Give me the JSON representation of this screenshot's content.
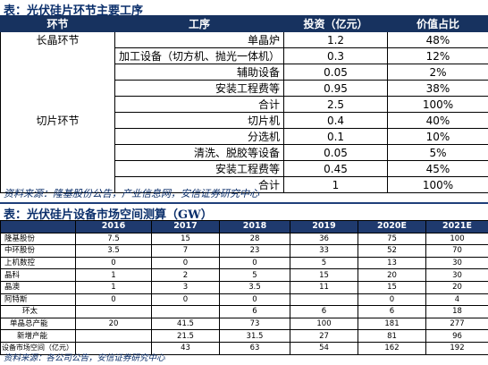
{
  "table1": {
    "title": "表：光伏硅片环节主要工序",
    "headers": [
      "环节",
      "工序",
      "投资（亿元）",
      "价值占比"
    ],
    "segments": [
      "长晶环节",
      "切片环节"
    ],
    "rows": [
      {
        "process": "单晶炉",
        "investment": "1.2",
        "share": "48%"
      },
      {
        "process": "加工设备（切方机、抛光一体机）",
        "investment": "0.3",
        "share": "12%"
      },
      {
        "process": "辅助设备",
        "investment": "0.05",
        "share": "2%"
      },
      {
        "process": "安装工程费等",
        "investment": "0.95",
        "share": "38%"
      },
      {
        "process": "合计",
        "investment": "2.5",
        "share": "100%"
      },
      {
        "process": "切片机",
        "investment": "0.4",
        "share": "40%"
      },
      {
        "process": "分选机",
        "investment": "0.1",
        "share": "10%"
      },
      {
        "process": "清洗、脱胶等设备",
        "investment": "0.05",
        "share": "5%"
      },
      {
        "process": "安装工程费等",
        "investment": "0.45",
        "share": "45%"
      },
      {
        "process": "合计",
        "investment": "1",
        "share": "100%"
      }
    ],
    "source": "资料来源：隆基股份公告，产业信息网，安信证券研究中心"
  },
  "table2": {
    "title": "表：光伏硅片设备市场空间测算（GW）",
    "headers": [
      "",
      "2016",
      "2017",
      "2018",
      "2019",
      "2020E",
      "2021E"
    ],
    "rows": [
      {
        "label": "隆基股份",
        "values": [
          "7.5",
          "15",
          "28",
          "36",
          "75",
          "100"
        ]
      },
      {
        "label": "中环股份",
        "values": [
          "3.5",
          "7",
          "23",
          "33",
          "52",
          "70"
        ]
      },
      {
        "label": "上机数控",
        "values": [
          "0",
          "0",
          "0",
          "5",
          "13",
          "30"
        ]
      },
      {
        "label": "晶科",
        "values": [
          "1",
          "2",
          "5",
          "15",
          "20",
          "30"
        ]
      },
      {
        "label": "晶澳",
        "values": [
          "1",
          "3",
          "3.5",
          "11",
          "15",
          "20"
        ]
      },
      {
        "label": "阿特斯",
        "values": [
          "0",
          "0",
          "0",
          "",
          "0",
          "4"
        ]
      },
      {
        "label": "环太",
        "values": [
          "",
          "",
          "6",
          "6",
          "6",
          "18"
        ]
      },
      {
        "label": "单晶总产能",
        "values": [
          "20",
          "41.5",
          "73",
          "100",
          "181",
          "277"
        ]
      },
      {
        "label": "新增产能",
        "values": [
          "",
          "21.5",
          "31.5",
          "27",
          "81",
          "96"
        ]
      },
      {
        "label": "设备市场空间（亿元）",
        "values": [
          "",
          "43",
          "63",
          "54",
          "162",
          "192"
        ]
      }
    ],
    "source": "资料来源：各公司公告，安信证券研究中心"
  }
}
